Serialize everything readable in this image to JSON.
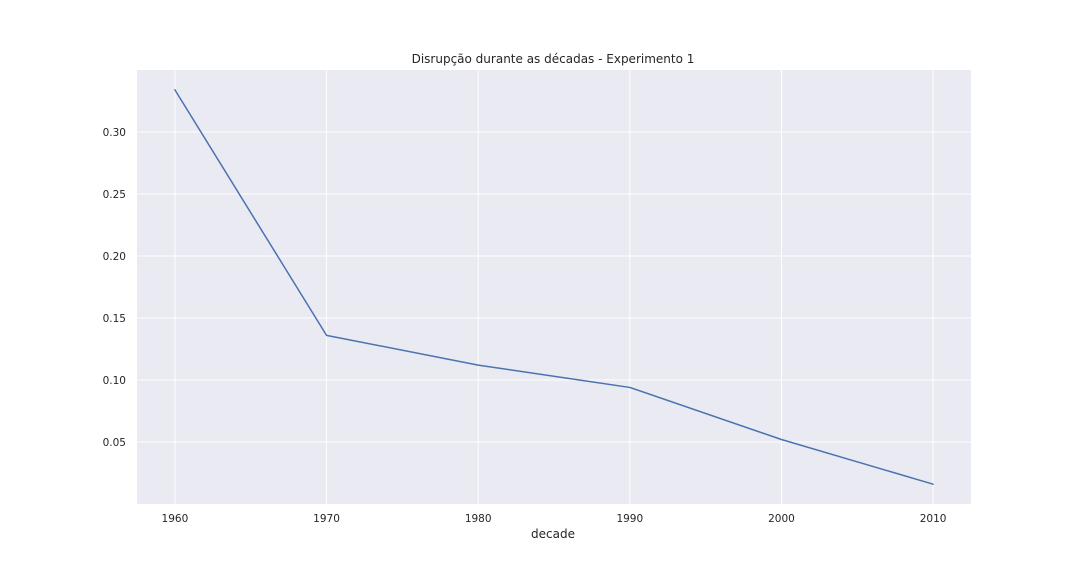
{
  "chart_data": {
    "type": "line",
    "title": "Disrupção durante as décadas - Experimento 1",
    "xlabel": "decade",
    "ylabel": "",
    "x": [
      1960,
      1970,
      1980,
      1990,
      2000,
      2010
    ],
    "series": [
      {
        "values": [
          0.334,
          0.136,
          0.112,
          0.094,
          0.052,
          0.016
        ],
        "color": "#4c72b0"
      }
    ],
    "xlim": [
      1957.5,
      2012.5
    ],
    "ylim": [
      0.0,
      0.35
    ],
    "xticks": [
      1960,
      1970,
      1980,
      1990,
      2000,
      2010
    ],
    "xtick_labels": [
      "1960",
      "1970",
      "1980",
      "1990",
      "2000",
      "2010"
    ],
    "yticks": [
      0.05,
      0.1,
      0.15,
      0.2,
      0.25,
      0.3
    ],
    "ytick_labels": [
      "0.05",
      "0.10",
      "0.15",
      "0.20",
      "0.25",
      "0.30"
    ],
    "grid": true,
    "background_color": "#eaeaf2",
    "grid_color": "#ffffff",
    "legend": "none"
  }
}
